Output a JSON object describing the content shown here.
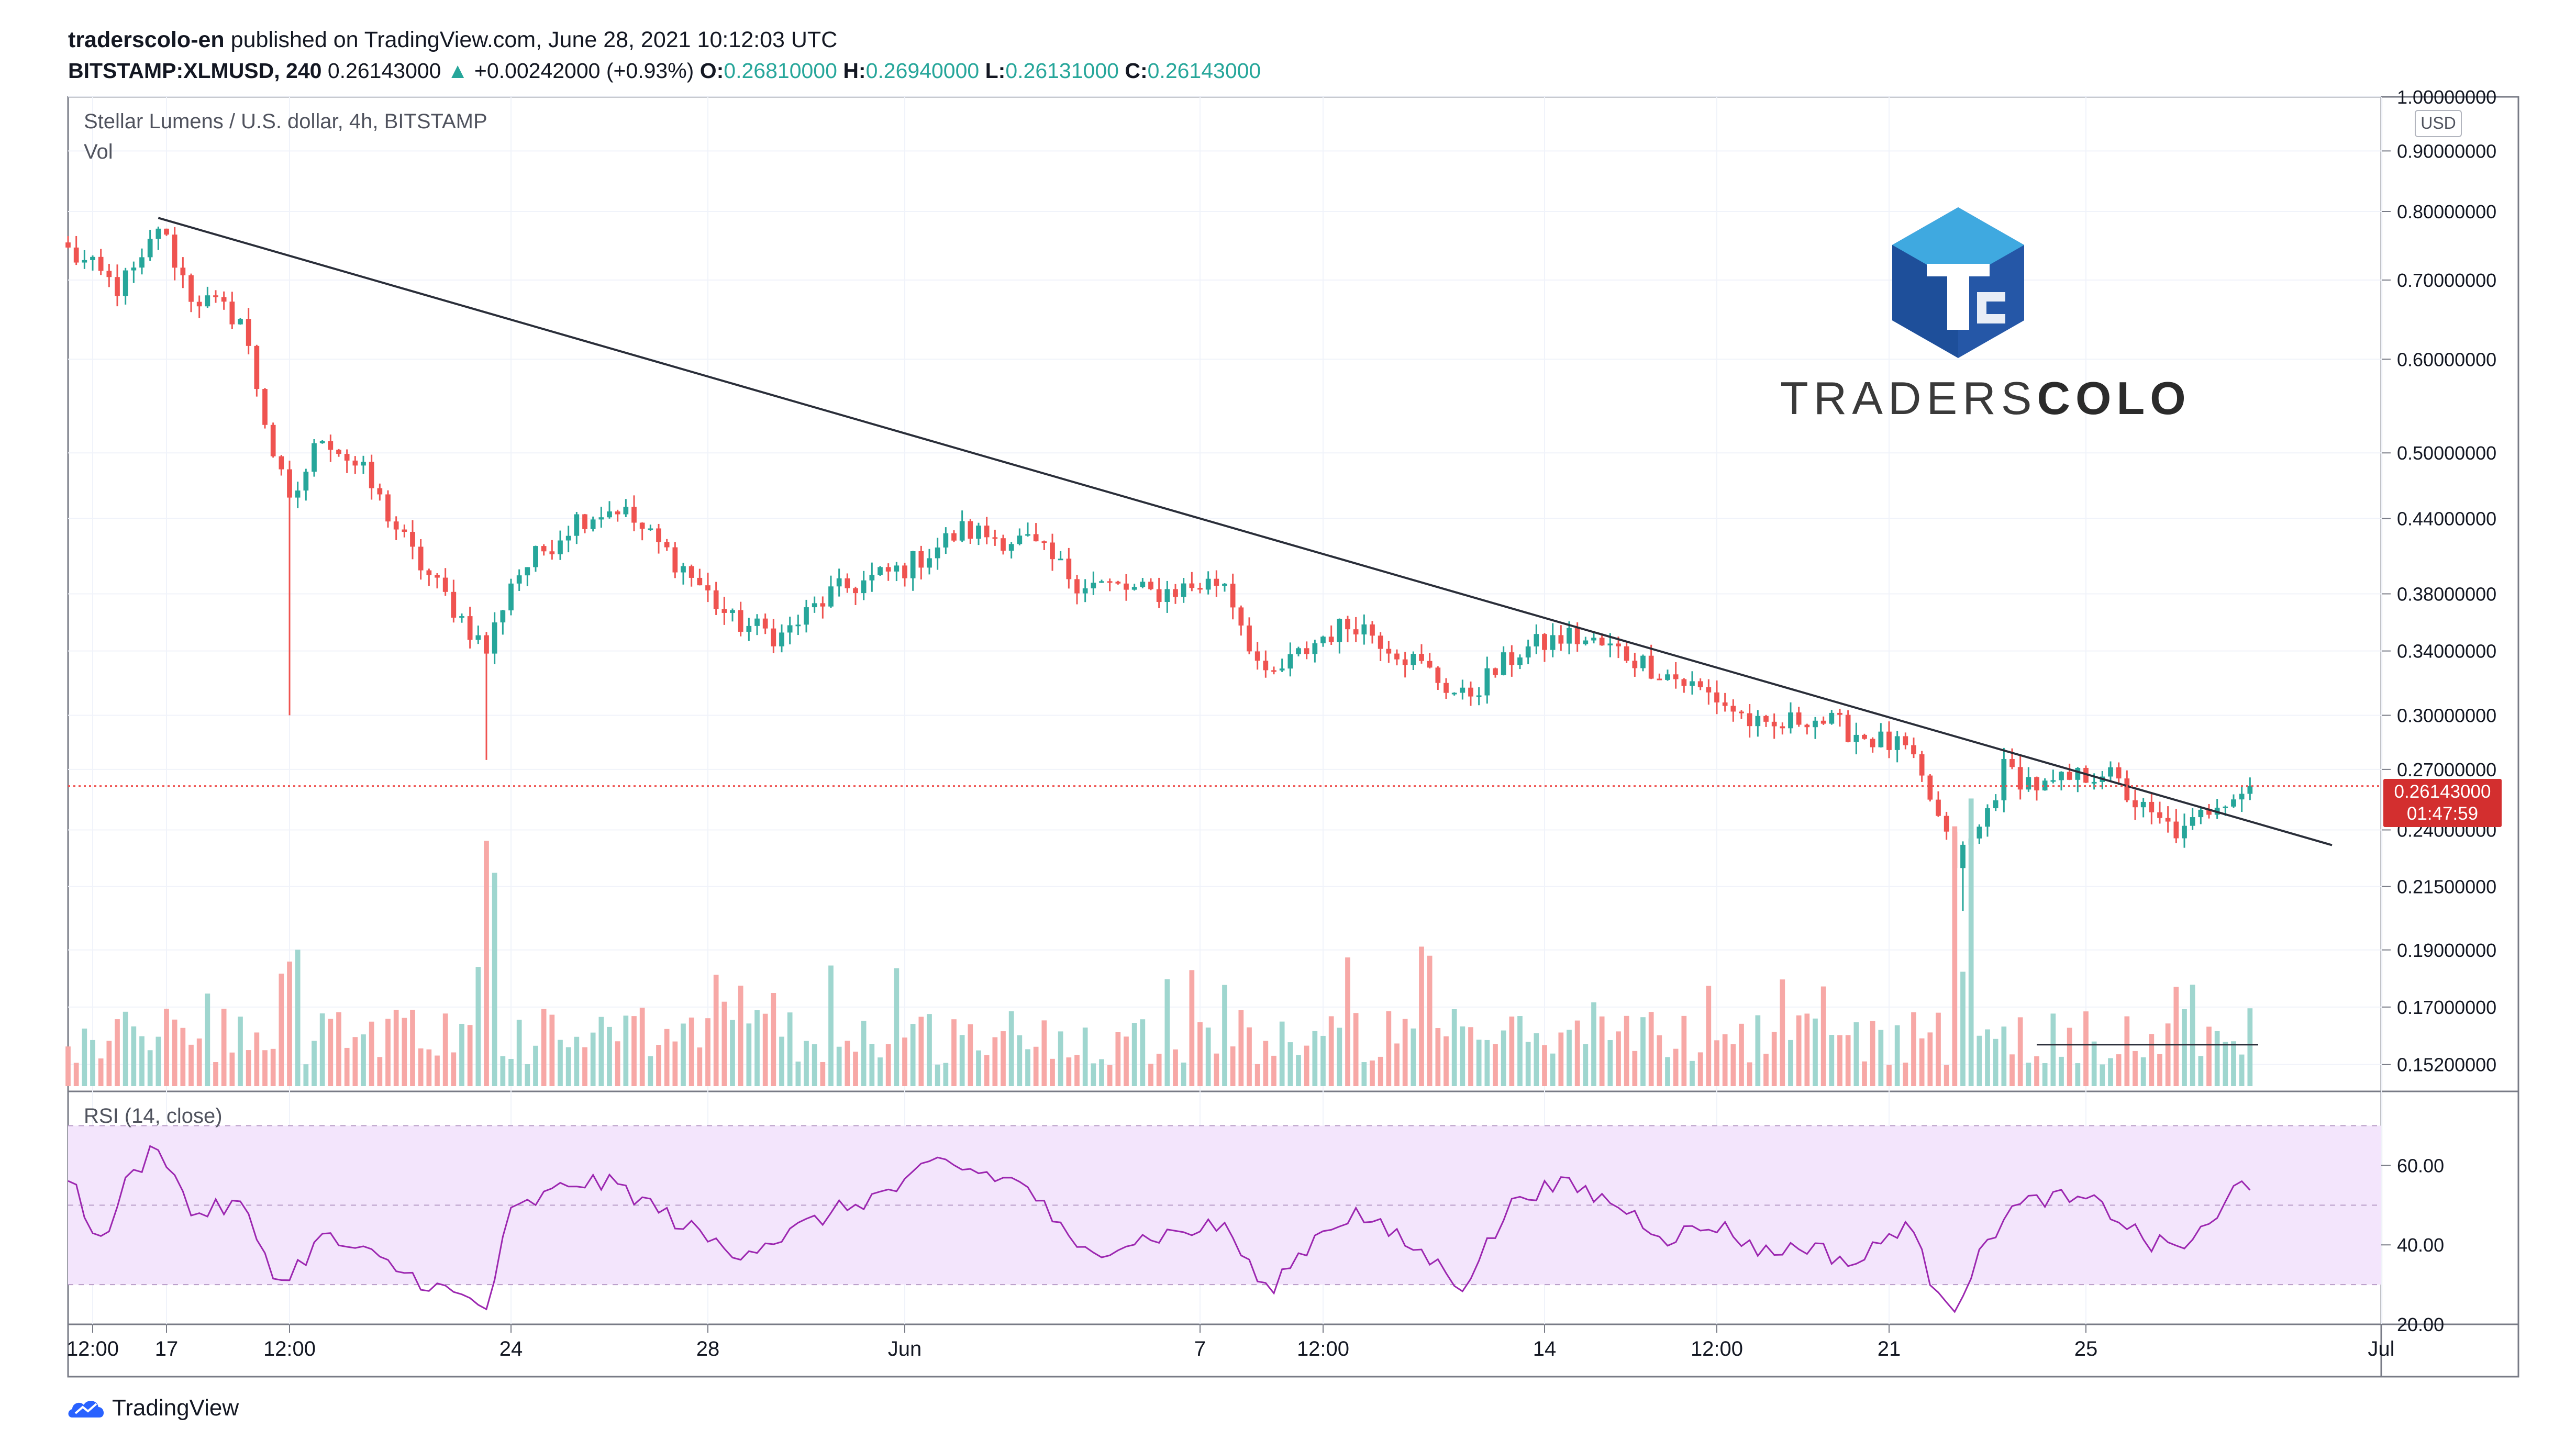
{
  "header": {
    "author": "traderscolo-en",
    "published_text": "published on TradingView.com, June 28, 2021 10:12:03 UTC",
    "symbol": "BITSTAMP:XLMUSD, 240",
    "price": "0.26143000",
    "change_arrow": "▲",
    "change": "+0.00242000 (+0.93%)",
    "o_label": "O:",
    "o_value": "0.26810000",
    "h_label": "H:",
    "h_value": "0.26940000",
    "l_label": "L:",
    "l_value": "0.26131000",
    "c_label": "C:",
    "c_value": "0.26143000"
  },
  "legend": {
    "title": "Stellar Lumens / U.S. dollar, 4h, BITSTAMP",
    "vol": "Vol",
    "rsi": "RSI (14, close)"
  },
  "price_axis": {
    "currency": "USD",
    "ticks": [
      "1.00000000",
      "0.90000000",
      "0.80000000",
      "0.70000000",
      "0.60000000",
      "0.50000000",
      "0.44000000",
      "0.38000000",
      "0.34000000",
      "0.30000000",
      "0.27000000",
      "0.24000000",
      "0.21500000",
      "0.19000000",
      "0.17000000",
      "0.15200000"
    ],
    "current_price": "0.26143000",
    "countdown": "01:47:59"
  },
  "rsi_axis": {
    "ticks": [
      "60.00",
      "40.00",
      "20.00"
    ]
  },
  "time_axis": {
    "labels": [
      "12:00",
      "17",
      "12:00",
      "24",
      "28",
      "Jun",
      "7",
      "12:00",
      "14",
      "12:00",
      "21",
      "25",
      "Jul"
    ]
  },
  "brand": {
    "light": "TRADERS",
    "bold": "COLO"
  },
  "footer": {
    "label": "TradingView"
  },
  "colors": {
    "up": "#26a69a",
    "down": "#ef5350",
    "rsi_line": "#9c27b0",
    "rsi_band": "#f3e5fc",
    "trendline": "#2a2e39",
    "price_line": "#ef5350",
    "logo_dark": "#2557a7",
    "logo_light": "#3fa9e0"
  },
  "chart_data": {
    "type": "candlestick",
    "series_name": "XLMUSD 4h",
    "log_scale": true,
    "x_range": [
      "2021-05-15",
      "2021-07-01"
    ],
    "y_range": [
      0.145,
      1.0
    ],
    "close_anchors": [
      [
        "2021-05-15 00:00",
        0.74
      ],
      [
        "2021-05-16 00:00",
        0.69
      ],
      [
        "2021-05-16 12:00",
        0.72
      ],
      [
        "2021-05-16 20:00",
        0.78
      ],
      [
        "2021-05-17 12:00",
        0.68
      ],
      [
        "2021-05-18 12:00",
        0.65
      ],
      [
        "2021-05-19 04:00",
        0.5
      ],
      [
        "2021-05-19 12:00",
        0.45
      ],
      [
        "2021-05-20 04:00",
        0.52
      ],
      [
        "2021-05-21 00:00",
        0.48
      ],
      [
        "2021-05-22 00:00",
        0.41
      ],
      [
        "2021-05-22 20:00",
        0.37
      ],
      [
        "2021-05-23 12:00",
        0.34
      ],
      [
        "2021-05-24 00:00",
        0.39
      ],
      [
        "2021-05-25 08:00",
        0.44
      ],
      [
        "2021-05-26 04:00",
        0.45
      ],
      [
        "2021-05-27 12:00",
        0.4
      ],
      [
        "2021-05-28 12:00",
        0.36
      ],
      [
        "2021-05-29 12:00",
        0.35
      ],
      [
        "2021-05-30 12:00",
        0.38
      ],
      [
        "2021-06-01 00:00",
        0.4
      ],
      [
        "2021-06-02 04:00",
        0.43
      ],
      [
        "2021-06-03 12:00",
        0.42
      ],
      [
        "2021-06-04 12:00",
        0.39
      ],
      [
        "2021-06-06 00:00",
        0.38
      ],
      [
        "2021-06-07 12:00",
        0.39
      ],
      [
        "2021-06-08 08:00",
        0.32
      ],
      [
        "2021-06-09 12:00",
        0.35
      ],
      [
        "2021-06-10 04:00",
        0.36
      ],
      [
        "2021-06-11 12:00",
        0.33
      ],
      [
        "2021-06-12 08:00",
        0.31
      ],
      [
        "2021-06-13 12:00",
        0.34
      ],
      [
        "2021-06-14 12:00",
        0.35
      ],
      [
        "2021-06-15 12:00",
        0.34
      ],
      [
        "2021-06-16 12:00",
        0.325
      ],
      [
        "2021-06-17 12:00",
        0.31
      ],
      [
        "2021-06-18 12:00",
        0.29
      ],
      [
        "2021-06-19 08:00",
        0.3
      ],
      [
        "2021-06-20 08:00",
        0.29
      ],
      [
        "2021-06-21 08:00",
        0.28
      ],
      [
        "2021-06-21 20:00",
        0.255
      ],
      [
        "2021-06-22 08:00",
        0.225
      ],
      [
        "2021-06-22 20:00",
        0.24
      ],
      [
        "2021-06-23 08:00",
        0.27
      ],
      [
        "2021-06-24 04:00",
        0.26
      ],
      [
        "2021-06-25 08:00",
        0.27
      ],
      [
        "2021-06-26 08:00",
        0.245
      ],
      [
        "2021-06-27 00:00",
        0.238
      ],
      [
        "2021-06-27 16:00",
        0.255
      ],
      [
        "2021-06-28 08:00",
        0.261
      ]
    ],
    "spike_lows": [
      [
        "2021-05-19 12:00",
        0.3
      ],
      [
        "2021-05-23 12:00",
        0.275
      ],
      [
        "2021-06-22 12:00",
        0.205
      ]
    ],
    "trendline": {
      "from": [
        "2021-05-16 20:00",
        0.79
      ],
      "to": [
        "2021-06-30 00:00",
        0.233
      ]
    },
    "support_line": {
      "from": [
        "2021-06-24 00:00",
        0.158
      ],
      "to": [
        "2021-06-28 12:00",
        0.158
      ]
    },
    "last_price": 0.26143,
    "volume_shown": true,
    "rsi": {
      "period": 14,
      "upper": 70,
      "lower": 30,
      "y_range": [
        20,
        70
      ],
      "anchors": [
        [
          "2021-05-15 00:00",
          58
        ],
        [
          "2021-05-15 16:00",
          40
        ],
        [
          "2021-05-16 04:00",
          55
        ],
        [
          "2021-05-16 20:00",
          66
        ],
        [
          "2021-05-17 12:00",
          48
        ],
        [
          "2021-05-18 12:00",
          50
        ],
        [
          "2021-05-19 08:00",
          30
        ],
        [
          "2021-05-20 04:00",
          42
        ],
        [
          "2021-05-21 00:00",
          38
        ],
        [
          "2021-05-22 00:00",
          32
        ],
        [
          "2021-05-23 12:00",
          24
        ],
        [
          "2021-05-24 00:00",
          48
        ],
        [
          "2021-05-25 08:00",
          56
        ],
        [
          "2021-05-26 04:00",
          55
        ],
        [
          "2021-05-27 12:00",
          45
        ],
        [
          "2021-05-28 12:00",
          38
        ],
        [
          "2021-05-29 12:00",
          42
        ],
        [
          "2021-05-30 12:00",
          48
        ],
        [
          "2021-06-01 00:00",
          55
        ],
        [
          "2021-06-01 16:00",
          61
        ],
        [
          "2021-06-03 12:00",
          55
        ],
        [
          "2021-06-04 12:00",
          38
        ],
        [
          "2021-06-06 00:00",
          42
        ],
        [
          "2021-06-07 12:00",
          45
        ],
        [
          "2021-06-08 08:00",
          28
        ],
        [
          "2021-06-09 12:00",
          44
        ],
        [
          "2021-06-10 04:00",
          48
        ],
        [
          "2021-06-11 12:00",
          38
        ],
        [
          "2021-06-12 08:00",
          30
        ],
        [
          "2021-06-13 12:00",
          53
        ],
        [
          "2021-06-14 12:00",
          55
        ],
        [
          "2021-06-15 12:00",
          50
        ],
        [
          "2021-06-16 12:00",
          42
        ],
        [
          "2021-06-17 12:00",
          45
        ],
        [
          "2021-06-18 12:00",
          38
        ],
        [
          "2021-06-19 08:00",
          40
        ],
        [
          "2021-06-20 08:00",
          35
        ],
        [
          "2021-06-21 08:00",
          46
        ],
        [
          "2021-06-21 20:00",
          32
        ],
        [
          "2021-06-22 08:00",
          25
        ],
        [
          "2021-06-23 08:00",
          48
        ],
        [
          "2021-06-24 04:00",
          52
        ],
        [
          "2021-06-25 08:00",
          50
        ],
        [
          "2021-06-26 08:00",
          40
        ],
        [
          "2021-06-27 00:00",
          40
        ],
        [
          "2021-06-27 16:00",
          46
        ],
        [
          "2021-06-28 04:00",
          58
        ],
        [
          "2021-06-28 08:00",
          55
        ]
      ]
    }
  }
}
